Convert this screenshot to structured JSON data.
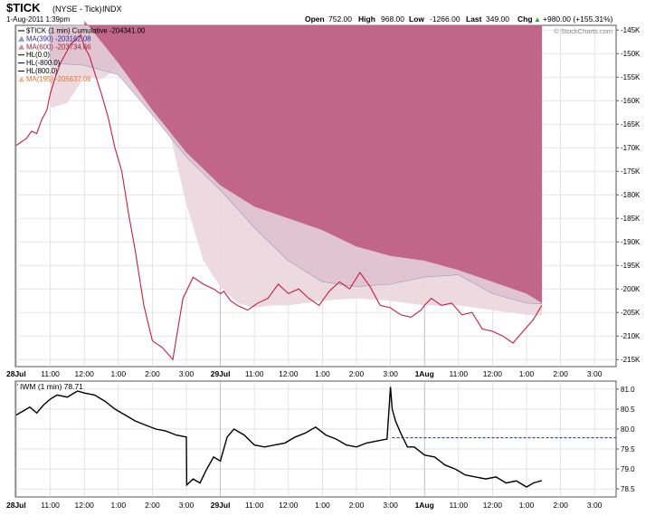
{
  "header": {
    "symbol": "$TICK",
    "name": "(NYSE - Tick)",
    "exchange": "INDX",
    "date": "1-Aug-2011 1:39pm",
    "open_label": "Open",
    "open": "752.00",
    "high_label": "High",
    "high": "968.00",
    "low_label": "Low",
    "low": "-1266.00",
    "last_label": "Last",
    "last": "349.00",
    "chg_label": "Chg",
    "chg": "+980.00 (+155.31%)",
    "chg_arrow": "▲",
    "watermark": "© StockCharts.com"
  },
  "legend": [
    {
      "text": "$TICK (1 min) Cumulative -204341.00",
      "color": "#000000",
      "icon": "line-icon"
    },
    {
      "text": "MA(390) -203162.08",
      "color": "#2a2aa0",
      "icon": "area-icon"
    },
    {
      "text": "MA(600) -203734.66",
      "color": "#a0203c",
      "icon": "area-icon"
    },
    {
      "text": "HL(0.0)",
      "color": "#000000",
      "icon": "line-icon"
    },
    {
      "text": "HL(-800.0)",
      "color": "#000000",
      "icon": "line-icon"
    },
    {
      "text": "HL(800.0)",
      "color": "#000000",
      "icon": "line-icon"
    },
    {
      "text": "MA(195) -205637.06",
      "color": "#e0742c",
      "icon": "area-icon"
    }
  ],
  "lower_legend": "IWM (1 min) 78.71",
  "colors": {
    "line_upper": "#c41e46",
    "line_lower": "#000000",
    "ma600_fill": "#b94f77",
    "ma390_fill": "#ddbfcc",
    "ma195_fill": "#ecd7de",
    "grid": "#d9d9d9",
    "hline_dashed": "#1a1ac8"
  },
  "chart_data": [
    {
      "type": "line",
      "title": "$TICK (1 min) Cumulative",
      "y_axis_side": "right",
      "ylim": [
        -216500,
        -144000
      ],
      "y_ticks": [
        -145000,
        -150000,
        -155000,
        -160000,
        -165000,
        -170000,
        -175000,
        -180000,
        -185000,
        -190000,
        -195000,
        -200000,
        -205000,
        -210000,
        -215000
      ],
      "y_tick_labels": [
        "-145K",
        "-150K",
        "-155K",
        "-160K",
        "-165K",
        "-170K",
        "-175K",
        "-180K",
        "-185K",
        "-190K",
        "-195K",
        "-200K",
        "-205K",
        "-210K",
        "-215K"
      ],
      "x_labels": [
        "28Jul",
        "11:00",
        "12:00",
        "1:00",
        "2:00",
        "3:00",
        "29Jul",
        "11:00",
        "12:00",
        "1:00",
        "2:00",
        "3:00",
        "1Aug",
        "11:00",
        "12:00",
        "1:00",
        "2:00",
        "3:00"
      ],
      "bold_x_labels": [
        "28Jul",
        "29Jul",
        "1Aug"
      ],
      "grid": true,
      "series": [
        {
          "name": "$TICK (1 min) Cumulative",
          "x": [
            0,
            0.1,
            0.2,
            0.3,
            0.45,
            0.6,
            0.75,
            0.9,
            1.0,
            1.15,
            1.3,
            1.45,
            1.6,
            1.75,
            1.9,
            2.0,
            2.15,
            2.3,
            2.5,
            2.7,
            2.9,
            3.1,
            3.3,
            3.5,
            3.75,
            4.0,
            4.3,
            4.6,
            4.9,
            5.2,
            5.5,
            5.8,
            6.0,
            6.1,
            6.3,
            6.5,
            6.8,
            7.1,
            7.4,
            7.7,
            8.0,
            8.3,
            8.6,
            8.9,
            9.2,
            9.5,
            9.8,
            10.1,
            10.4,
            10.7,
            11.0,
            11.3,
            11.6,
            11.9,
            12.0,
            12.2,
            12.5,
            12.8,
            13.1,
            13.4,
            13.7,
            14.0,
            14.3,
            14.6,
            14.9,
            15.2,
            15.45
          ],
          "values": [
            -169500,
            -169000,
            -168500,
            -168000,
            -166500,
            -167000,
            -164000,
            -162000,
            -158500,
            -155000,
            -152000,
            -150000,
            -148000,
            -147000,
            -146000,
            -148500,
            -150500,
            -154000,
            -158500,
            -163500,
            -170000,
            -175000,
            -184000,
            -192000,
            -203500,
            -211000,
            -212500,
            -215000,
            -202000,
            -197500,
            -199000,
            -200000,
            -201000,
            -200500,
            -202500,
            -203500,
            -204500,
            -203000,
            -202000,
            -199000,
            -201000,
            -200000,
            -202000,
            -203500,
            -200500,
            -198500,
            -200000,
            -196500,
            -199500,
            -203500,
            -204000,
            -205500,
            -206000,
            -204500,
            -203500,
            -202000,
            -203500,
            -203000,
            -205500,
            -205000,
            -208500,
            -209000,
            -210000,
            -211500,
            -209000,
            -206500,
            -203500
          ]
        },
        {
          "name": "MA(600) -203734.66",
          "x": [
            2.0,
            3.0,
            4.0,
            5.0,
            6.0,
            7.0,
            8.0,
            9.0,
            10.0,
            11.0,
            12.0,
            13.0,
            14.0,
            15.0,
            15.45
          ],
          "values": [
            -143000,
            -152000,
            -162000,
            -171000,
            -178000,
            -182500,
            -185000,
            -187500,
            -191000,
            -193000,
            -194000,
            -196000,
            -198500,
            -201000,
            -203000
          ]
        },
        {
          "name": "MA(390) -203162.08",
          "x": [
            1.0,
            2.0,
            3.0,
            4.0,
            5.0,
            6.0,
            7.0,
            8.0,
            9.0,
            10.0,
            11.0,
            12.0,
            13.0,
            14.0,
            15.0,
            15.45
          ],
          "values": [
            -152000,
            -152500,
            -154500,
            -163000,
            -172000,
            -179000,
            -187000,
            -194000,
            -198500,
            -199500,
            -199000,
            -197500,
            -197000,
            -201000,
            -203000,
            -203200
          ]
        },
        {
          "name": "MA(195) -205637.06",
          "x": [
            1.0,
            1.5,
            2.0,
            2.5,
            3.0,
            3.5,
            4.0,
            4.5,
            5.0,
            5.5,
            6.0,
            6.5,
            7.0,
            7.5,
            8.0,
            9.0,
            10.0,
            11.0,
            12.0,
            13.0,
            14.0,
            15.0,
            15.45
          ],
          "values": [
            -161500,
            -160500,
            -155000,
            -155500,
            -153000,
            -154500,
            -157000,
            -166500,
            -182000,
            -194000,
            -199500,
            -203000,
            -204000,
            -203500,
            -203500,
            -202500,
            -202000,
            -202500,
            -203500,
            -203500,
            -204500,
            -205500,
            -205600
          ]
        }
      ]
    },
    {
      "type": "line",
      "title": "IWM (1 min) 78.71",
      "y_axis_side": "right",
      "ylim": [
        78.3,
        81.2
      ],
      "y_ticks": [
        78.5,
        79.0,
        79.5,
        80.0,
        80.5,
        81.0
      ],
      "y_tick_labels": [
        "78.5",
        "79.0",
        "79.5",
        "80.0",
        "80.5",
        "81.0"
      ],
      "x_labels": [
        "28Jul",
        "11:00",
        "12:00",
        "1:00",
        "2:00",
        "3:00",
        "29Jul",
        "11:00",
        "12:00",
        "1:00",
        "2:00",
        "3:00",
        "1Aug",
        "11:00",
        "12:00",
        "1:00",
        "2:00",
        "3:00"
      ],
      "bold_x_labels": [
        "28Jul",
        "29Jul",
        "1Aug"
      ],
      "h_line": 79.78,
      "series": [
        {
          "name": "IWM (1 min)",
          "x": [
            0,
            0.2,
            0.4,
            0.6,
            0.8,
            1.0,
            1.2,
            1.5,
            1.8,
            2.0,
            2.3,
            2.6,
            2.9,
            3.2,
            3.5,
            3.8,
            4.1,
            4.4,
            4.7,
            5.0,
            5.01,
            5.2,
            5.4,
            5.6,
            5.8,
            6.0,
            6.2,
            6.4,
            6.7,
            7.0,
            7.3,
            7.6,
            7.9,
            8.2,
            8.5,
            8.8,
            9.1,
            9.4,
            9.7,
            10.0,
            10.3,
            10.6,
            10.9,
            11.0,
            11.05,
            11.15,
            11.3,
            11.5,
            11.7,
            12.0,
            12.3,
            12.6,
            12.9,
            13.2,
            13.5,
            13.8,
            14.1,
            14.4,
            14.7,
            15.0,
            15.2,
            15.45
          ],
          "values": [
            80.35,
            80.45,
            80.55,
            80.4,
            80.6,
            80.75,
            80.85,
            80.8,
            80.95,
            80.9,
            80.85,
            80.7,
            80.5,
            80.35,
            80.2,
            80.1,
            80.0,
            79.95,
            79.85,
            79.8,
            78.6,
            78.75,
            78.65,
            79.0,
            79.3,
            79.2,
            79.8,
            80.0,
            79.85,
            79.6,
            79.55,
            79.6,
            79.65,
            79.8,
            79.9,
            80.05,
            79.85,
            79.75,
            79.6,
            79.55,
            79.65,
            79.7,
            79.75,
            81.05,
            80.5,
            80.2,
            79.9,
            79.55,
            79.55,
            79.35,
            79.3,
            79.1,
            79.0,
            78.85,
            78.8,
            78.75,
            78.8,
            78.65,
            78.7,
            78.55,
            78.65,
            78.71
          ]
        }
      ]
    }
  ]
}
